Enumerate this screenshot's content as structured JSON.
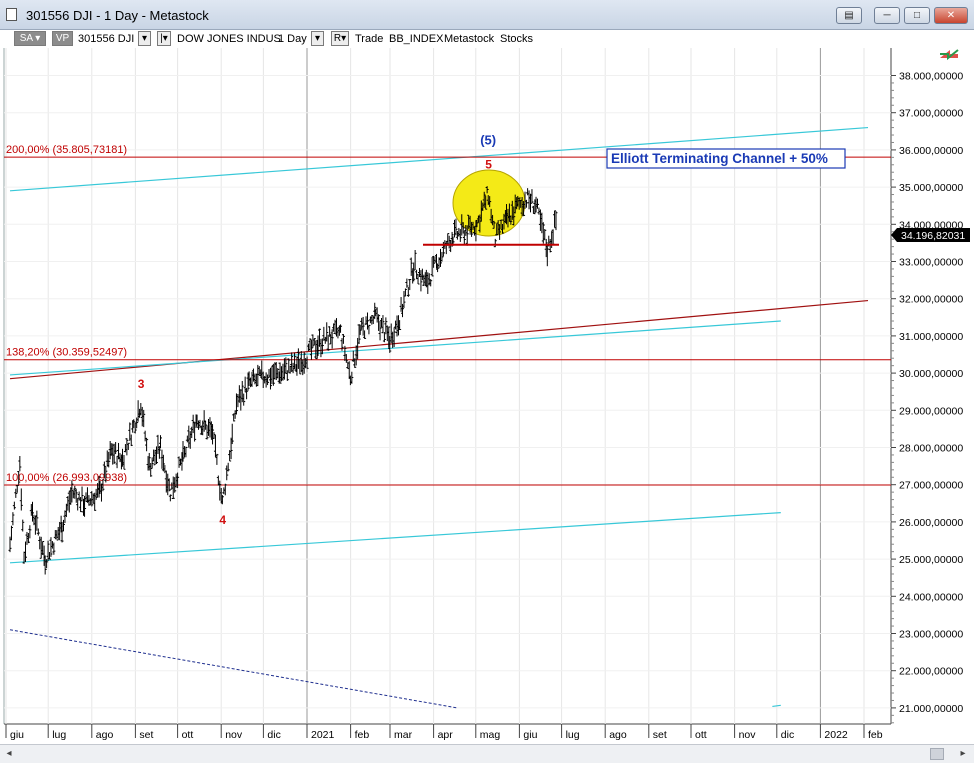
{
  "window": {
    "title": "301556 DJI - 1 Day - Metastock",
    "restore_glyph": "▭",
    "minimize_glyph": "─",
    "maximize_glyph": "□",
    "close_glyph": "✕",
    "extra_glyph": "▤"
  },
  "toolbar": {
    "sa_label": "SA ▾",
    "vp_label": "VP",
    "symbol": "301556 DJI",
    "dropdown_glyph": "▾",
    "pipe_glyph": "|▾",
    "security_name": "DOW JONES INDUS",
    "periodicity": "1 Day",
    "r_label": "R▾",
    "trade_label": "Trade",
    "source1": "BB_INDEX",
    "source2": "Metastock",
    "source3": "Stocks"
  },
  "chart_data": {
    "type": "ohlc",
    "security": "DOW JONES INDUS",
    "periodicity": "1 Day",
    "x_tick_labels": [
      "giu",
      "lug",
      "ago",
      "set",
      "ott",
      "nov",
      "dic",
      "2021",
      "feb",
      "mar",
      "apr",
      "mag",
      "giu",
      "lug",
      "ago",
      "set",
      "ott",
      "nov",
      "dic",
      "2022",
      "feb"
    ],
    "y_tick_labels": [
      "38.000,00000",
      "37.000,00000",
      "36.000,00000",
      "35.000,00000",
      "34.000,00000",
      "33.000,00000",
      "32.000,00000",
      "31.000,00000",
      "30.000,00000",
      "29.000,00000",
      "28.000,00000",
      "27.000,00000",
      "26.000,00000",
      "25.000,00000",
      "24.000,00000",
      "23.000,00000",
      "22.000,00000",
      "21.000,00000"
    ],
    "ylim": [
      21000,
      39000
    ],
    "last_price_label": "34.196,82031",
    "fib_levels": [
      {
        "label": "200,00% (35.805,73181)",
        "value": 35805.73181
      },
      {
        "label": "138,20% (30.359,52497)",
        "value": 30359.52497
      },
      {
        "label": "100,00% (26.993,09938)",
        "value": 26993.09938
      }
    ],
    "support_level": 33450,
    "wave_labels": [
      {
        "text": "3",
        "date": "2020-09-02",
        "price": 29600
      },
      {
        "text": "4",
        "date": "2020-10-30",
        "price": 25950
      },
      {
        "text": "5",
        "date": "2021-05-07",
        "price": 35500
      },
      {
        "text": "(5)",
        "date": "2021-05-07",
        "price": 36150
      }
    ],
    "annotation": "Elliott Terminating Channel + 50%",
    "price_path": [
      [
        "2020-06-01",
        25400
      ],
      [
        "2020-06-08",
        27600
      ],
      [
        "2020-06-11",
        25100
      ],
      [
        "2020-06-17",
        26300
      ],
      [
        "2020-06-26",
        25000
      ],
      [
        "2020-07-08",
        25900
      ],
      [
        "2020-07-15",
        26800
      ],
      [
        "2020-07-24",
        26500
      ],
      [
        "2020-08-04",
        26800
      ],
      [
        "2020-08-12",
        27900
      ],
      [
        "2020-08-20",
        27700
      ],
      [
        "2020-08-28",
        28600
      ],
      [
        "2020-09-02",
        29200
      ],
      [
        "2020-09-08",
        27500
      ],
      [
        "2020-09-16",
        28000
      ],
      [
        "2020-09-23",
        26800
      ],
      [
        "2020-10-02",
        27700
      ],
      [
        "2020-10-12",
        28800
      ],
      [
        "2020-10-16",
        28600
      ],
      [
        "2020-10-23",
        28400
      ],
      [
        "2020-10-30",
        26500
      ],
      [
        "2020-11-06",
        28300
      ],
      [
        "2020-11-09",
        29200
      ],
      [
        "2020-11-18",
        29700
      ],
      [
        "2020-11-27",
        29900
      ],
      [
        "2020-12-10",
        30000
      ],
      [
        "2020-12-22",
        30200
      ],
      [
        "2021-01-06",
        30800
      ],
      [
        "2021-01-15",
        31000
      ],
      [
        "2021-01-22",
        31100
      ],
      [
        "2021-01-29",
        29900
      ],
      [
        "2021-02-05",
        31100
      ],
      [
        "2021-02-16",
        31500
      ],
      [
        "2021-02-26",
        30900
      ],
      [
        "2021-03-05",
        31500
      ],
      [
        "2021-03-15",
        32900
      ],
      [
        "2021-03-24",
        32400
      ],
      [
        "2021-04-01",
        33000
      ],
      [
        "2021-04-12",
        33700
      ],
      [
        "2021-04-20",
        33800
      ],
      [
        "2021-04-29",
        34000
      ],
      [
        "2021-05-07",
        34800
      ],
      [
        "2021-05-12",
        33600
      ],
      [
        "2021-05-20",
        34100
      ],
      [
        "2021-05-28",
        34500
      ],
      [
        "2021-06-04",
        34700
      ],
      [
        "2021-06-10",
        34500
      ],
      [
        "2021-06-18",
        33300
      ],
      [
        "2021-06-25",
        34200
      ]
    ]
  },
  "colors": {
    "fib_line": "#c00000",
    "fib_text": "#c00000",
    "channel_red": "#a01010",
    "channel_cyan": "#38c8d8",
    "highlight_circle": "#f4ea17",
    "wave_red": "#d11010",
    "wave_blue": "#1a3ab5",
    "price_bars": "#000000",
    "annotation_border": "#1a3ab5"
  }
}
